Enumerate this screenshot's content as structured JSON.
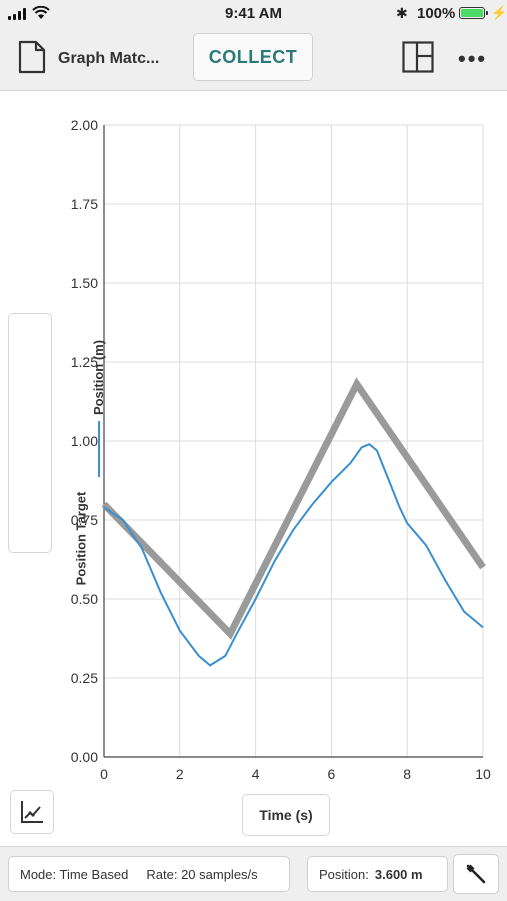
{
  "status": {
    "time": "9:41 AM",
    "battery": "100%"
  },
  "toolbar": {
    "title": "Graph Matc...",
    "collect_label": "COLLECT"
  },
  "graph": {
    "legend_position": "Position (m)",
    "legend_target": "Position Target",
    "x_axis_label": "Time (s)"
  },
  "footer": {
    "mode": "Mode: Time Based",
    "rate": "Rate: 20 samples/s",
    "position_label": "Position:",
    "position_value": "3.600 m"
  },
  "colors": {
    "accent": "#2a7a78",
    "measured": "#3a8fd0",
    "target": "#9a9a9a"
  },
  "chart_data": {
    "type": "line",
    "xlabel": "Time (s)",
    "ylabel": "Position (m)",
    "xlim": [
      0,
      10
    ],
    "ylim": [
      0,
      2
    ],
    "x_ticks": [
      "0",
      "2",
      "4",
      "6",
      "8",
      "10"
    ],
    "y_ticks": [
      "0.00",
      "0.25",
      "0.50",
      "0.75",
      "1.00",
      "1.25",
      "1.50",
      "1.75",
      "2.00"
    ],
    "grid": true,
    "legend": "left-vertical",
    "series": [
      {
        "name": "Position (m)",
        "color": "#3a8fd0",
        "points": [
          [
            0,
            0.79
          ],
          [
            0.5,
            0.75
          ],
          [
            1.0,
            0.66
          ],
          [
            1.5,
            0.52
          ],
          [
            2.0,
            0.4
          ],
          [
            2.5,
            0.32
          ],
          [
            2.8,
            0.29
          ],
          [
            3.2,
            0.32
          ],
          [
            3.5,
            0.39
          ],
          [
            4.0,
            0.5
          ],
          [
            4.5,
            0.62
          ],
          [
            5.0,
            0.72
          ],
          [
            5.5,
            0.8
          ],
          [
            6.0,
            0.87
          ],
          [
            6.5,
            0.93
          ],
          [
            6.8,
            0.98
          ],
          [
            7.0,
            0.99
          ],
          [
            7.2,
            0.97
          ],
          [
            7.5,
            0.88
          ],
          [
            7.8,
            0.79
          ],
          [
            8.0,
            0.74
          ],
          [
            8.5,
            0.67
          ],
          [
            9.0,
            0.56
          ],
          [
            9.5,
            0.46
          ],
          [
            10.0,
            0.41
          ]
        ]
      },
      {
        "name": "Position Target",
        "color": "#9a9a9a",
        "points": [
          [
            0,
            0.8
          ],
          [
            3.33,
            0.39
          ],
          [
            6.67,
            1.18
          ],
          [
            10.0,
            0.6
          ]
        ]
      }
    ]
  }
}
